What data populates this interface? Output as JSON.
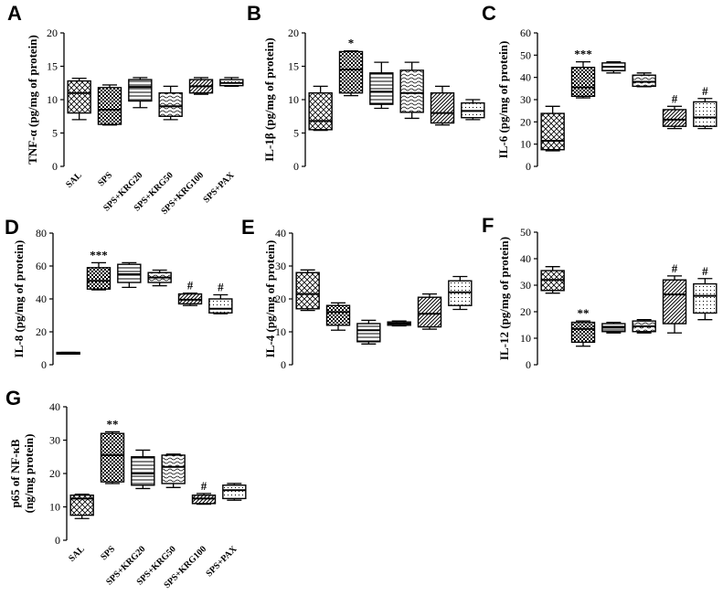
{
  "colors": {
    "stroke": "#000000",
    "background": "#ffffff"
  },
  "chart_data": [
    {
      "panel": "A",
      "type": "box",
      "ylabel": "TNF-α (pg/mg of protein)",
      "ylim": [
        0,
        20
      ],
      "yticks": [
        0,
        5,
        10,
        15,
        20
      ],
      "categories": [
        "SAL",
        "SPS",
        "SPS+KRG20",
        "SPS+KRG50",
        "SPS+KRG100",
        "SPS+PAX"
      ],
      "show_xlabels": true,
      "boxes": [
        {
          "min": 7.0,
          "q1": 8.0,
          "median": 11.0,
          "q3": 12.8,
          "max": 13.2,
          "pattern": "cross",
          "sig": ""
        },
        {
          "min": 6.2,
          "q1": 6.3,
          "median": 8.5,
          "q3": 11.8,
          "max": 12.2,
          "pattern": "checker",
          "sig": ""
        },
        {
          "min": 8.8,
          "q1": 9.8,
          "median": 11.9,
          "q3": 13.0,
          "max": 13.3,
          "pattern": "hlines",
          "sig": ""
        },
        {
          "min": 7.0,
          "q1": 7.5,
          "median": 9.0,
          "q3": 11.0,
          "max": 12.0,
          "pattern": "wave",
          "sig": ""
        },
        {
          "min": 10.8,
          "q1": 11.0,
          "median": 12.0,
          "q3": 13.0,
          "max": 13.3,
          "pattern": "diag",
          "sig": ""
        },
        {
          "min": 12.0,
          "q1": 12.1,
          "median": 12.5,
          "q3": 13.0,
          "max": 13.3,
          "pattern": "dots",
          "sig": ""
        }
      ]
    },
    {
      "panel": "B",
      "type": "box",
      "ylabel": "IL-1β (pg/mg of protein)",
      "ylim": [
        0,
        20
      ],
      "yticks": [
        0,
        5,
        10,
        15,
        20
      ],
      "categories": [
        "SAL",
        "SPS",
        "SPS+KRG20",
        "SPS+KRG50",
        "SPS+KRG100",
        "SPS+PAX"
      ],
      "show_xlabels": false,
      "boxes": [
        {
          "min": 5.4,
          "q1": 5.5,
          "median": 6.8,
          "q3": 11.0,
          "max": 12.0,
          "pattern": "cross",
          "sig": ""
        },
        {
          "min": 10.6,
          "q1": 11.0,
          "median": 14.5,
          "q3": 17.2,
          "max": 17.3,
          "pattern": "checker",
          "sig": "*"
        },
        {
          "min": 8.7,
          "q1": 9.3,
          "median": 11.2,
          "q3": 14.0,
          "max": 15.6,
          "pattern": "hlines",
          "sig": ""
        },
        {
          "min": 7.2,
          "q1": 8.1,
          "median": 11.0,
          "q3": 14.4,
          "max": 15.6,
          "pattern": "wave",
          "sig": ""
        },
        {
          "min": 6.2,
          "q1": 6.5,
          "median": 8.0,
          "q3": 11.0,
          "max": 12.0,
          "pattern": "diag",
          "sig": ""
        },
        {
          "min": 7.0,
          "q1": 7.3,
          "median": 8.3,
          "q3": 9.5,
          "max": 10.0,
          "pattern": "dots",
          "sig": ""
        }
      ]
    },
    {
      "panel": "C",
      "type": "box",
      "ylabel": "IL-6 (pg/mg of protein)",
      "ylim": [
        0,
        60
      ],
      "yticks": [
        0,
        10,
        20,
        30,
        40,
        50,
        60
      ],
      "categories": [
        "SAL",
        "SPS",
        "SPS+KRG20",
        "SPS+KRG50",
        "SPS+KRG100",
        "SPS+PAX"
      ],
      "show_xlabels": false,
      "boxes": [
        {
          "min": 7.0,
          "q1": 7.5,
          "median": 11.5,
          "q3": 23.8,
          "max": 27.0,
          "pattern": "cross",
          "sig": ""
        },
        {
          "min": 30.8,
          "q1": 31.5,
          "median": 35.5,
          "q3": 44.5,
          "max": 47.0,
          "pattern": "checker",
          "sig": "***"
        },
        {
          "min": 42.0,
          "q1": 43.0,
          "median": 44.8,
          "q3": 46.5,
          "max": 47.0,
          "pattern": "hlines",
          "sig": ""
        },
        {
          "min": 35.8,
          "q1": 36.0,
          "median": 38.0,
          "q3": 41.0,
          "max": 42.0,
          "pattern": "wave",
          "sig": ""
        },
        {
          "min": 17.0,
          "q1": 18.0,
          "median": 21.0,
          "q3": 25.5,
          "max": 27.0,
          "pattern": "diag",
          "sig": "#"
        },
        {
          "min": 17.0,
          "q1": 18.0,
          "median": 22.0,
          "q3": 29.0,
          "max": 30.5,
          "pattern": "dots",
          "sig": "#"
        }
      ]
    },
    {
      "panel": "D",
      "type": "box",
      "ylabel": "IL-8 (pg/mg of protein)",
      "ylim": [
        0,
        80
      ],
      "yticks": [
        0,
        20,
        40,
        60,
        80
      ],
      "categories": [
        "SAL",
        "SPS",
        "SPS+KRG20",
        "SPS+KRG50",
        "SPS+KRG100",
        "SPS+PAX"
      ],
      "show_xlabels": false,
      "boxes": [
        {
          "min": 6.5,
          "q1": 6.5,
          "median": 7.0,
          "q3": 7.5,
          "max": 7.5,
          "pattern": "cross",
          "sig": ""
        },
        {
          "min": 45.5,
          "q1": 46.0,
          "median": 51.0,
          "q3": 59.0,
          "max": 62.0,
          "pattern": "checker",
          "sig": "***"
        },
        {
          "min": 47.0,
          "q1": 50.0,
          "median": 55.0,
          "q3": 61.0,
          "max": 62.0,
          "pattern": "hlines",
          "sig": ""
        },
        {
          "min": 48.0,
          "q1": 50.0,
          "median": 53.0,
          "q3": 56.0,
          "max": 57.5,
          "pattern": "wave",
          "sig": ""
        },
        {
          "min": 36.0,
          "q1": 37.0,
          "median": 39.5,
          "q3": 43.0,
          "max": 43.5,
          "pattern": "diag",
          "sig": "#"
        },
        {
          "min": 31.0,
          "q1": 31.5,
          "median": 34.0,
          "q3": 40.0,
          "max": 42.5,
          "pattern": "dots",
          "sig": "#"
        }
      ]
    },
    {
      "panel": "E",
      "type": "box",
      "ylabel": "IL-4 (pg/mg of protein)",
      "ylim": [
        0,
        40
      ],
      "yticks": [
        0,
        10,
        20,
        30,
        40
      ],
      "categories": [
        "SAL",
        "SPS",
        "SPS+KRG20",
        "SPS+KRG50",
        "SPS+KRG100",
        "SPS+PAX"
      ],
      "show_xlabels": false,
      "boxes": [
        {
          "min": 16.5,
          "q1": 17.0,
          "median": 21.5,
          "q3": 28.0,
          "max": 28.8,
          "pattern": "cross",
          "sig": ""
        },
        {
          "min": 10.5,
          "q1": 12.0,
          "median": 16.0,
          "q3": 18.0,
          "max": 18.8,
          "pattern": "checker",
          "sig": ""
        },
        {
          "min": 6.3,
          "q1": 7.0,
          "median": 10.5,
          "q3": 12.5,
          "max": 13.5,
          "pattern": "hlines",
          "sig": ""
        },
        {
          "min": 11.8,
          "q1": 12.0,
          "median": 12.5,
          "q3": 13.0,
          "max": 13.3,
          "pattern": "wave",
          "sig": ""
        },
        {
          "min": 10.8,
          "q1": 11.5,
          "median": 15.5,
          "q3": 20.5,
          "max": 21.5,
          "pattern": "diag",
          "sig": ""
        },
        {
          "min": 16.8,
          "q1": 18.0,
          "median": 22.0,
          "q3": 25.5,
          "max": 26.8,
          "pattern": "dots",
          "sig": ""
        }
      ]
    },
    {
      "panel": "F",
      "type": "box",
      "ylabel": "IL-12 (pg/mg of protein)",
      "ylim": [
        0,
        50
      ],
      "yticks": [
        0,
        10,
        20,
        30,
        40,
        50
      ],
      "categories": [
        "SAL",
        "SPS",
        "SPS+KRG20",
        "SPS+KRG50",
        "SPS+KRG100",
        "SPS+PAX"
      ],
      "show_xlabels": false,
      "boxes": [
        {
          "min": 27.0,
          "q1": 28.0,
          "median": 32.0,
          "q3": 35.5,
          "max": 37.0,
          "pattern": "cross",
          "sig": ""
        },
        {
          "min": 7.0,
          "q1": 8.5,
          "median": 13.5,
          "q3": 16.0,
          "max": 16.5,
          "pattern": "checker",
          "sig": "**"
        },
        {
          "min": 12.0,
          "q1": 12.5,
          "median": 14.0,
          "q3": 15.5,
          "max": 16.0,
          "pattern": "hlines",
          "sig": ""
        },
        {
          "min": 12.0,
          "q1": 12.5,
          "median": 14.5,
          "q3": 16.5,
          "max": 17.0,
          "pattern": "wave",
          "sig": ""
        },
        {
          "min": 12.0,
          "q1": 15.5,
          "median": 26.5,
          "q3": 32.0,
          "max": 33.5,
          "pattern": "diag",
          "sig": "#"
        },
        {
          "min": 17.0,
          "q1": 19.5,
          "median": 26.0,
          "q3": 30.5,
          "max": 32.5,
          "pattern": "dots",
          "sig": "#"
        }
      ]
    },
    {
      "panel": "G",
      "type": "box",
      "ylabel": "p65 of NF-κB",
      "ylabel2": "(ng/mg protein)",
      "ylim": [
        0,
        40
      ],
      "yticks": [
        0,
        10,
        20,
        30,
        40
      ],
      "categories": [
        "SAL",
        "SPS",
        "SPS+KRG20",
        "SPS+KRG50",
        "SPS+KRG100",
        "SPS+PAX"
      ],
      "show_xlabels": true,
      "boxes": [
        {
          "min": 6.5,
          "q1": 7.5,
          "median": 12.5,
          "q3": 13.5,
          "max": 13.8,
          "pattern": "cross",
          "sig": ""
        },
        {
          "min": 17.0,
          "q1": 17.5,
          "median": 25.5,
          "q3": 32.0,
          "max": 32.5,
          "pattern": "checker",
          "sig": "**"
        },
        {
          "min": 15.5,
          "q1": 16.5,
          "median": 20.0,
          "q3": 25.0,
          "max": 27.0,
          "pattern": "hlines",
          "sig": ""
        },
        {
          "min": 15.8,
          "q1": 17.0,
          "median": 22.0,
          "q3": 25.5,
          "max": 25.8,
          "pattern": "wave",
          "sig": ""
        },
        {
          "min": 10.8,
          "q1": 11.0,
          "median": 12.5,
          "q3": 13.5,
          "max": 14.0,
          "pattern": "diag",
          "sig": "#"
        },
        {
          "min": 12.0,
          "q1": 12.5,
          "median": 15.0,
          "q3": 16.5,
          "max": 17.0,
          "pattern": "dots",
          "sig": ""
        }
      ]
    }
  ]
}
